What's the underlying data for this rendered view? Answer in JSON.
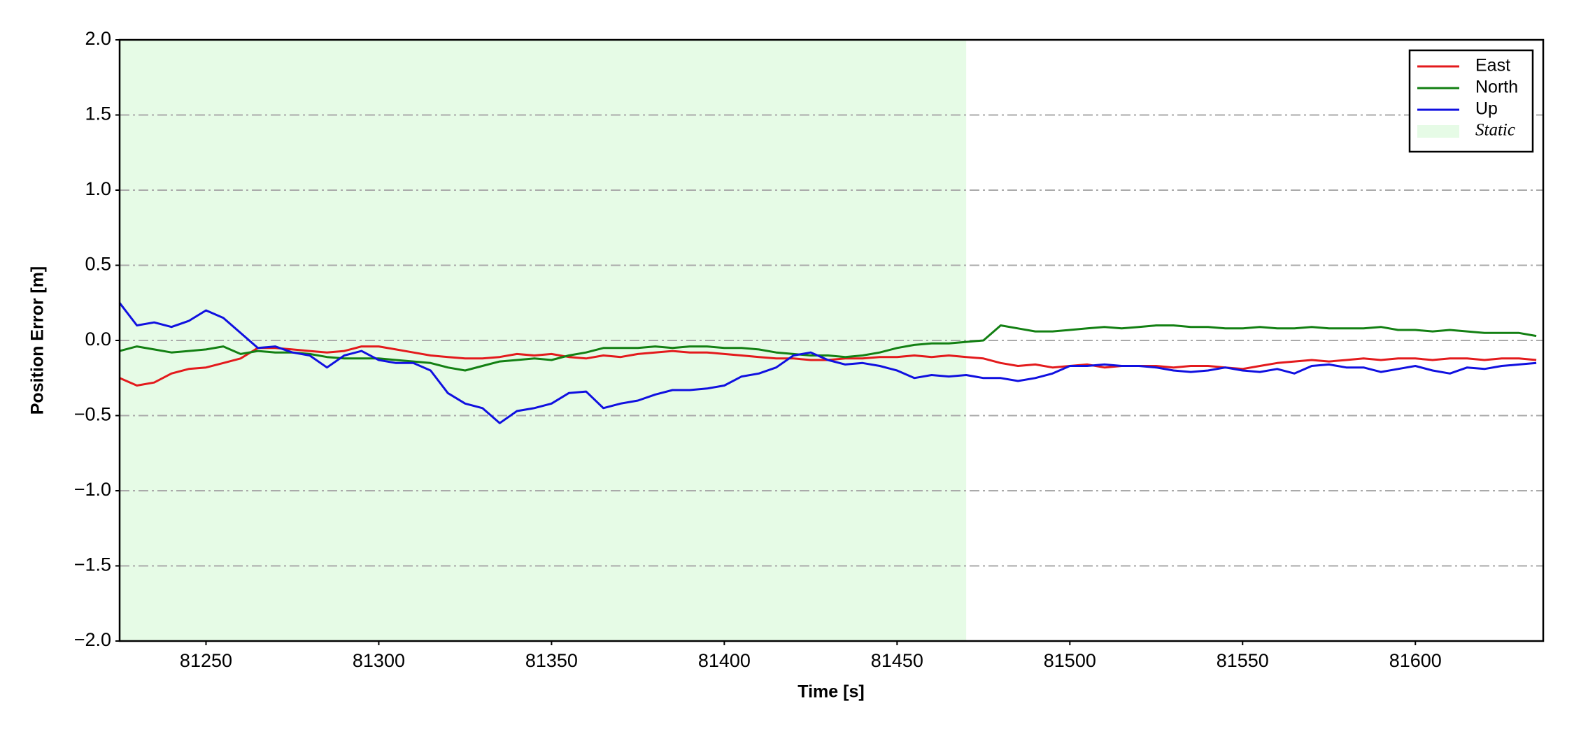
{
  "chart_data": {
    "type": "line",
    "x_label": "Time [s]",
    "y_label": "Position Error [m]",
    "xlim": [
      81225,
      81637
    ],
    "ylim": [
      -2.0,
      2.0
    ],
    "xticks": [
      81250,
      81300,
      81350,
      81400,
      81450,
      81500,
      81550,
      81600
    ],
    "yticks": [
      {
        "value": -2.0,
        "label": "−2.0"
      },
      {
        "value": -1.5,
        "label": "−1.5"
      },
      {
        "value": -1.0,
        "label": "−1.0"
      },
      {
        "value": -0.5,
        "label": "−0.5"
      },
      {
        "value": 0.0,
        "label": "0.0"
      },
      {
        "value": 0.5,
        "label": "0.5"
      },
      {
        "value": 1.0,
        "label": "1.0"
      },
      {
        "value": 1.5,
        "label": "1.5"
      },
      {
        "value": 2.0,
        "label": "2.0"
      }
    ],
    "grid": true,
    "legend": "upper right",
    "shaded_region": {
      "name": "Static",
      "xrange": [
        81225,
        81470
      ],
      "color": "#e6fbe6"
    },
    "x": [
      81225,
      81230,
      81235,
      81240,
      81245,
      81250,
      81255,
      81260,
      81265,
      81270,
      81275,
      81280,
      81285,
      81290,
      81295,
      81300,
      81305,
      81310,
      81315,
      81320,
      81325,
      81330,
      81335,
      81340,
      81345,
      81350,
      81355,
      81360,
      81365,
      81370,
      81375,
      81380,
      81385,
      81390,
      81395,
      81400,
      81405,
      81410,
      81415,
      81420,
      81425,
      81430,
      81435,
      81440,
      81445,
      81450,
      81455,
      81460,
      81465,
      81470,
      81475,
      81480,
      81485,
      81490,
      81495,
      81500,
      81505,
      81510,
      81515,
      81520,
      81525,
      81530,
      81535,
      81540,
      81545,
      81550,
      81555,
      81560,
      81565,
      81570,
      81575,
      81580,
      81585,
      81590,
      81595,
      81600,
      81605,
      81610,
      81615,
      81620,
      81625,
      81630,
      81635
    ],
    "series": [
      {
        "name": "East",
        "color": "#e31a1c",
        "values": [
          -0.25,
          -0.3,
          -0.28,
          -0.22,
          -0.19,
          -0.18,
          -0.15,
          -0.12,
          -0.05,
          -0.05,
          -0.06,
          -0.07,
          -0.08,
          -0.07,
          -0.04,
          -0.04,
          -0.06,
          -0.08,
          -0.1,
          -0.11,
          -0.12,
          -0.12,
          -0.11,
          -0.09,
          -0.1,
          -0.09,
          -0.11,
          -0.12,
          -0.1,
          -0.11,
          -0.09,
          -0.08,
          -0.07,
          -0.08,
          -0.08,
          -0.09,
          -0.1,
          -0.11,
          -0.12,
          -0.12,
          -0.13,
          -0.13,
          -0.12,
          -0.12,
          -0.11,
          -0.11,
          -0.1,
          -0.11,
          -0.1,
          -0.11,
          -0.12,
          -0.15,
          -0.17,
          -0.16,
          -0.18,
          -0.17,
          -0.16,
          -0.18,
          -0.17,
          -0.17,
          -0.17,
          -0.18,
          -0.17,
          -0.17,
          -0.18,
          -0.19,
          -0.17,
          -0.15,
          -0.14,
          -0.13,
          -0.14,
          -0.13,
          -0.12,
          -0.13,
          -0.12,
          -0.12,
          -0.13,
          -0.12,
          -0.12,
          -0.13,
          -0.12,
          -0.12,
          -0.13
        ]
      },
      {
        "name": "North",
        "color": "#138013",
        "values": [
          -0.07,
          -0.04,
          -0.06,
          -0.08,
          -0.07,
          -0.06,
          -0.04,
          -0.09,
          -0.07,
          -0.08,
          -0.08,
          -0.09,
          -0.11,
          -0.12,
          -0.12,
          -0.12,
          -0.13,
          -0.14,
          -0.15,
          -0.18,
          -0.2,
          -0.17,
          -0.14,
          -0.13,
          -0.12,
          -0.13,
          -0.1,
          -0.08,
          -0.05,
          -0.05,
          -0.05,
          -0.04,
          -0.05,
          -0.04,
          -0.04,
          -0.05,
          -0.05,
          -0.06,
          -0.08,
          -0.09,
          -0.1,
          -0.1,
          -0.11,
          -0.1,
          -0.08,
          -0.05,
          -0.03,
          -0.02,
          -0.02,
          -0.01,
          0.0,
          0.1,
          0.08,
          0.06,
          0.06,
          0.07,
          0.08,
          0.09,
          0.08,
          0.09,
          0.1,
          0.1,
          0.09,
          0.09,
          0.08,
          0.08,
          0.09,
          0.08,
          0.08,
          0.09,
          0.08,
          0.08,
          0.08,
          0.09,
          0.07,
          0.07,
          0.06,
          0.07,
          0.06,
          0.05,
          0.05,
          0.05,
          0.03
        ]
      },
      {
        "name": "Up",
        "color": "#1010e0",
        "values": [
          0.25,
          0.1,
          0.12,
          0.09,
          0.13,
          0.2,
          0.15,
          0.05,
          -0.05,
          -0.04,
          -0.08,
          -0.1,
          -0.18,
          -0.1,
          -0.07,
          -0.13,
          -0.15,
          -0.15,
          -0.2,
          -0.35,
          -0.42,
          -0.45,
          -0.55,
          -0.47,
          -0.45,
          -0.42,
          -0.35,
          -0.34,
          -0.45,
          -0.42,
          -0.4,
          -0.36,
          -0.33,
          -0.33,
          -0.32,
          -0.3,
          -0.24,
          -0.22,
          -0.18,
          -0.1,
          -0.08,
          -0.13,
          -0.16,
          -0.15,
          -0.17,
          -0.2,
          -0.25,
          -0.23,
          -0.24,
          -0.23,
          -0.25,
          -0.25,
          -0.27,
          -0.25,
          -0.22,
          -0.17,
          -0.17,
          -0.16,
          -0.17,
          -0.17,
          -0.18,
          -0.2,
          -0.21,
          -0.2,
          -0.18,
          -0.2,
          -0.21,
          -0.19,
          -0.22,
          -0.17,
          -0.16,
          -0.18,
          -0.18,
          -0.21,
          -0.19,
          -0.17,
          -0.2,
          -0.22,
          -0.18,
          -0.19,
          -0.17,
          -0.16,
          -0.15
        ]
      }
    ]
  }
}
